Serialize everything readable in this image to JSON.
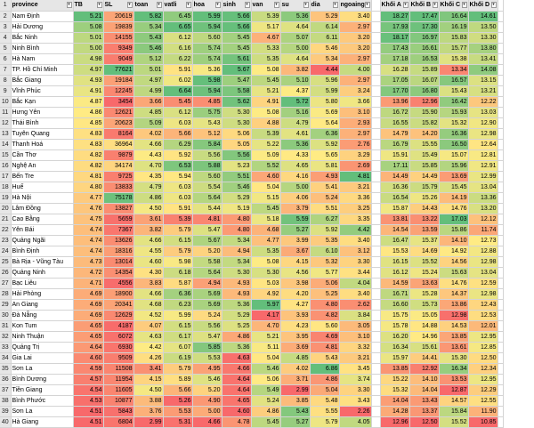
{
  "sheet": {
    "header_row_number": "1",
    "column_labels": [
      "province",
      "TB",
      "SL",
      "toan",
      "vatli",
      "hoa",
      "sinh",
      "van",
      "su",
      "dia",
      "ngoaing",
      "Khối A",
      "Khối B",
      "Khối C",
      "Khối D"
    ],
    "rows": [
      {
        "rn": "2",
        "cells": [
          "Nam Định",
          "5.21",
          "20619",
          "5.82",
          "6.45",
          "5.99",
          "5.66",
          "5.39",
          "5.36",
          "5.29",
          "3.40",
          "18.27",
          "17.47",
          "16.64",
          "14.61"
        ]
      },
      {
        "rn": "3",
        "cells": [
          "Hải Dương",
          "5.08",
          "19839",
          "5.34",
          "6.65",
          "5.94",
          "5.66",
          "5.17",
          "4.64",
          "6.14",
          "2.97",
          "17.93",
          "17.30",
          "16.19",
          "13.50"
        ]
      },
      {
        "rn": "4",
        "cells": [
          "Bắc Ninh",
          "5.01",
          "14155",
          "5.43",
          "6.12",
          "5.60",
          "5.45",
          "4.67",
          "5.07",
          "6.11",
          "3.20",
          "18.17",
          "16.97",
          "15.83",
          "13.30"
        ]
      },
      {
        "rn": "5",
        "cells": [
          "Ninh Bình",
          "5.00",
          "9349",
          "5.46",
          "6.16",
          "5.74",
          "5.45",
          "5.33",
          "5.00",
          "5.46",
          "3.20",
          "17.43",
          "16.61",
          "15.77",
          "13.80"
        ]
      },
      {
        "rn": "6",
        "cells": [
          "Hà Nam",
          "4.98",
          "9049",
          "5.12",
          "6.22",
          "5.74",
          "5.61",
          "5.35",
          "4.64",
          "5.34",
          "2.97",
          "17.18",
          "16.53",
          "15.38",
          "13.41"
        ]
      },
      {
        "rn": "7",
        "cells": [
          "TP. Hồ Chí Minh",
          "4.97",
          "77621",
          "5.01",
          "5.91",
          "5.36",
          "5.67",
          "5.08",
          "3.82",
          "4.44",
          "4.00",
          "16.28",
          "15.89",
          "13.34",
          "14.08"
        ]
      },
      {
        "rn": "8",
        "cells": [
          "Bắc Giang",
          "4.93",
          "19184",
          "4.97",
          "6.02",
          "5.98",
          "5.47",
          "5.45",
          "5.10",
          "5.96",
          "2.97",
          "17.05",
          "16.07",
          "16.57",
          "13.15"
        ]
      },
      {
        "rn": "9",
        "cells": [
          "Vĩnh Phúc",
          "4.91",
          "12245",
          "4.99",
          "6.64",
          "5.94",
          "5.58",
          "5.21",
          "4.37",
          "5.99",
          "3.24",
          "17.70",
          "16.80",
          "15.43",
          "13.21"
        ]
      },
      {
        "rn": "10",
        "cells": [
          "Bắc Kạn",
          "4.87",
          "3454",
          "3.66",
          "5.45",
          "4.85",
          "5.62",
          "4.91",
          "5.72",
          "5.80",
          "3.66",
          "13.96",
          "12.96",
          "16.42",
          "12.22"
        ]
      },
      {
        "rn": "11",
        "cells": [
          "Hưng Yên",
          "4.86",
          "12621",
          "4.85",
          "6.12",
          "5.75",
          "5.30",
          "5.08",
          "5.16",
          "5.69",
          "3.10",
          "16.72",
          "15.90",
          "15.93",
          "13.03"
        ]
      },
      {
        "rn": "12",
        "cells": [
          "Thái Bình",
          "4.85",
          "20623",
          "5.09",
          "6.03",
          "5.43",
          "5.30",
          "4.88",
          "4.79",
          "5.64",
          "2.93",
          "16.55",
          "15.82",
          "15.32",
          "12.90"
        ]
      },
      {
        "rn": "13",
        "cells": [
          "Tuyên Quang",
          "4.83",
          "8164",
          "4.02",
          "5.66",
          "5.12",
          "5.06",
          "5.39",
          "4.61",
          "6.36",
          "2.97",
          "14.79",
          "14.20",
          "16.36",
          "12.98"
        ]
      },
      {
        "rn": "14",
        "cells": [
          "Thanh Hoá",
          "4.83",
          "36964",
          "4.66",
          "6.29",
          "5.84",
          "5.05",
          "5.22",
          "5.36",
          "5.92",
          "2.76",
          "16.79",
          "15.55",
          "16.50",
          "12.64"
        ]
      },
      {
        "rn": "15",
        "cells": [
          "Cần Thơ",
          "4.82",
          "9879",
          "4.43",
          "5.92",
          "5.56",
          "5.56",
          "5.09",
          "4.33",
          "5.65",
          "3.29",
          "15.91",
          "15.49",
          "15.07",
          "12.81"
        ]
      },
      {
        "rn": "16",
        "cells": [
          "Nghệ An",
          "4.82",
          "34174",
          "4.70",
          "6.53",
          "5.88",
          "5.23",
          "5.52",
          "4.65",
          "5.81",
          "2.69",
          "17.11",
          "15.85",
          "15.96",
          "12.91"
        ]
      },
      {
        "rn": "17",
        "cells": [
          "Bến Tre",
          "4.81",
          "9725",
          "4.35",
          "5.94",
          "5.60",
          "5.51",
          "4.60",
          "4.16",
          "4.93",
          "4.81",
          "14.49",
          "14.49",
          "13.69",
          "12.99"
        ]
      },
      {
        "rn": "18",
        "cells": [
          "Huế",
          "4.80",
          "13833",
          "4.79",
          "6.03",
          "5.54",
          "5.46",
          "5.04",
          "5.00",
          "5.41",
          "3.21",
          "16.36",
          "15.79",
          "15.45",
          "13.04"
        ]
      },
      {
        "rn": "19",
        "cells": [
          "Hà Nội",
          "4.77",
          "75178",
          "4.86",
          "6.03",
          "5.64",
          "5.29",
          "5.15",
          "4.06",
          "5.24",
          "3.36",
          "16.54",
          "15.26",
          "14.19",
          "13.36"
        ]
      },
      {
        "rn": "20",
        "cells": [
          "Lâm Đồng",
          "4.76",
          "13827",
          "4.50",
          "5.91",
          "5.44",
          "5.19",
          "5.45",
          "3.79",
          "5.51",
          "3.25",
          "15.87",
          "14.43",
          "14.76",
          "13.20"
        ]
      },
      {
        "rn": "21",
        "cells": [
          "Cao Bằng",
          "4.75",
          "5659",
          "3.61",
          "5.39",
          "4.81",
          "4.80",
          "5.18",
          "5.59",
          "6.27",
          "3.35",
          "13.81",
          "13.22",
          "17.03",
          "12.12"
        ]
      },
      {
        "rn": "22",
        "cells": [
          "Yên Bái",
          "4.74",
          "7367",
          "3.82",
          "5.79",
          "5.47",
          "4.80",
          "4.68",
          "5.27",
          "5.92",
          "4.42",
          "14.54",
          "13.59",
          "15.86",
          "11.74"
        ]
      },
      {
        "rn": "23",
        "cells": [
          "Quảng Ngãi",
          "4.74",
          "13626",
          "4.66",
          "6.15",
          "5.67",
          "5.34",
          "4.77",
          "3.99",
          "5.35",
          "3.40",
          "16.47",
          "15.37",
          "14.10",
          "12.73"
        ]
      },
      {
        "rn": "24",
        "cells": [
          "Bình Định",
          "4.74",
          "18316",
          "4.55",
          "5.79",
          "5.20",
          "4.94",
          "5.35",
          "3.67",
          "6.10",
          "3.12",
          "15.53",
          "14.69",
          "14.92",
          "12.88"
        ]
      },
      {
        "rn": "25",
        "cells": [
          "Bà Rịa - Vũng Tàu",
          "4.73",
          "13014",
          "4.60",
          "5.98",
          "5.58",
          "5.34",
          "5.08",
          "4.15",
          "5.32",
          "3.30",
          "16.15",
          "15.52",
          "14.56",
          "12.98"
        ]
      },
      {
        "rn": "26",
        "cells": [
          "Quảng Ninh",
          "4.72",
          "14354",
          "4.30",
          "6.18",
          "5.64",
          "5.30",
          "5.30",
          "4.56",
          "5.77",
          "3.44",
          "16.12",
          "15.24",
          "15.63",
          "13.04"
        ]
      },
      {
        "rn": "27",
        "cells": [
          "Bạc Liêu",
          "4.71",
          "4556",
          "3.83",
          "5.87",
          "4.94",
          "4.93",
          "5.03",
          "3.98",
          "5.06",
          "4.04",
          "14.59",
          "13.63",
          "14.76",
          "12.59"
        ]
      },
      {
        "rn": "28",
        "cells": [
          "Hải Phòng",
          "4.69",
          "18900",
          "4.66",
          "6.36",
          "5.69",
          "4.93",
          "4.92",
          "4.20",
          "5.25",
          "3.40",
          "16.71",
          "15.28",
          "14.37",
          "12.98"
        ]
      },
      {
        "rn": "29",
        "cells": [
          "An Giang",
          "4.69",
          "20341",
          "4.68",
          "6.23",
          "5.69",
          "5.36",
          "5.97",
          "4.27",
          "4.80",
          "2.62",
          "16.60",
          "15.73",
          "13.86",
          "12.43"
        ]
      },
      {
        "rn": "30",
        "cells": [
          "Đà Nẵng",
          "4.69",
          "12629",
          "4.52",
          "5.99",
          "5.24",
          "5.29",
          "4.17",
          "3.93",
          "4.82",
          "3.84",
          "15.75",
          "15.05",
          "12.98",
          "12.53"
        ]
      },
      {
        "rn": "31",
        "cells": [
          "Kon Tum",
          "4.65",
          "4187",
          "4.07",
          "6.15",
          "5.56",
          "5.25",
          "4.70",
          "4.23",
          "5.60",
          "3.05",
          "15.78",
          "14.88",
          "14.53",
          "12.01"
        ]
      },
      {
        "rn": "32",
        "cells": [
          "Ninh Thuận",
          "4.65",
          "6072",
          "4.63",
          "6.17",
          "5.47",
          "4.86",
          "5.21",
          "3.95",
          "4.69",
          "3.10",
          "16.20",
          "14.96",
          "13.85",
          "12.95"
        ]
      },
      {
        "rn": "33",
        "cells": [
          "Quảng Trị",
          "4.64",
          "6930",
          "4.42",
          "6.07",
          "5.85",
          "5.36",
          "5.11",
          "3.69",
          "4.81",
          "3.32",
          "16.34",
          "15.61",
          "13.61",
          "12.85"
        ]
      },
      {
        "rn": "34",
        "cells": [
          "Gia Lai",
          "4.60",
          "9509",
          "4.26",
          "6.19",
          "5.53",
          "4.63",
          "5.04",
          "4.85",
          "5.43",
          "3.21",
          "15.97",
          "14.41",
          "15.30",
          "12.50"
        ]
      },
      {
        "rn": "35",
        "cells": [
          "Sơn La",
          "4.59",
          "11508",
          "3.41",
          "5.79",
          "4.95",
          "4.66",
          "5.46",
          "4.02",
          "6.86",
          "3.45",
          "13.85",
          "12.92",
          "16.34",
          "12.34"
        ]
      },
      {
        "rn": "36",
        "cells": [
          "Bình Dương",
          "4.57",
          "11954",
          "4.15",
          "5.89",
          "5.46",
          "4.64",
          "5.06",
          "3.71",
          "4.86",
          "3.74",
          "15.22",
          "14.10",
          "13.53",
          "12.95"
        ]
      },
      {
        "rn": "37",
        "cells": [
          "Tiền Giang",
          "4.54",
          "11605",
          "4.50",
          "5.66",
          "5.20",
          "4.64",
          "5.49",
          "2.99",
          "5.04",
          "3.30",
          "15.32",
          "14.04",
          "12.87",
          "12.29"
        ]
      },
      {
        "rn": "38",
        "cells": [
          "Bình Phước",
          "4.53",
          "10877",
          "3.88",
          "5.26",
          "4.90",
          "4.65",
          "5.24",
          "3.85",
          "5.48",
          "3.43",
          "14.04",
          "13.43",
          "14.57",
          "12.55"
        ]
      },
      {
        "rn": "39",
        "cells": [
          "Sơn La",
          "4.51",
          "5843",
          "3.76",
          "5.53",
          "5.00",
          "4.60",
          "4.86",
          "5.43",
          "5.55",
          "2.26",
          "14.28",
          "13.37",
          "15.84",
          "11.90"
        ]
      },
      {
        "rn": "40",
        "cells": [
          "Hà Giang",
          "4.51",
          "6804",
          "2.99",
          "5.31",
          "4.66",
          "4.78",
          "5.45",
          "5.27",
          "5.79",
          "4.05",
          "12.96",
          "12.50",
          "15.52",
          "10.85"
        ]
      }
    ]
  }
}
